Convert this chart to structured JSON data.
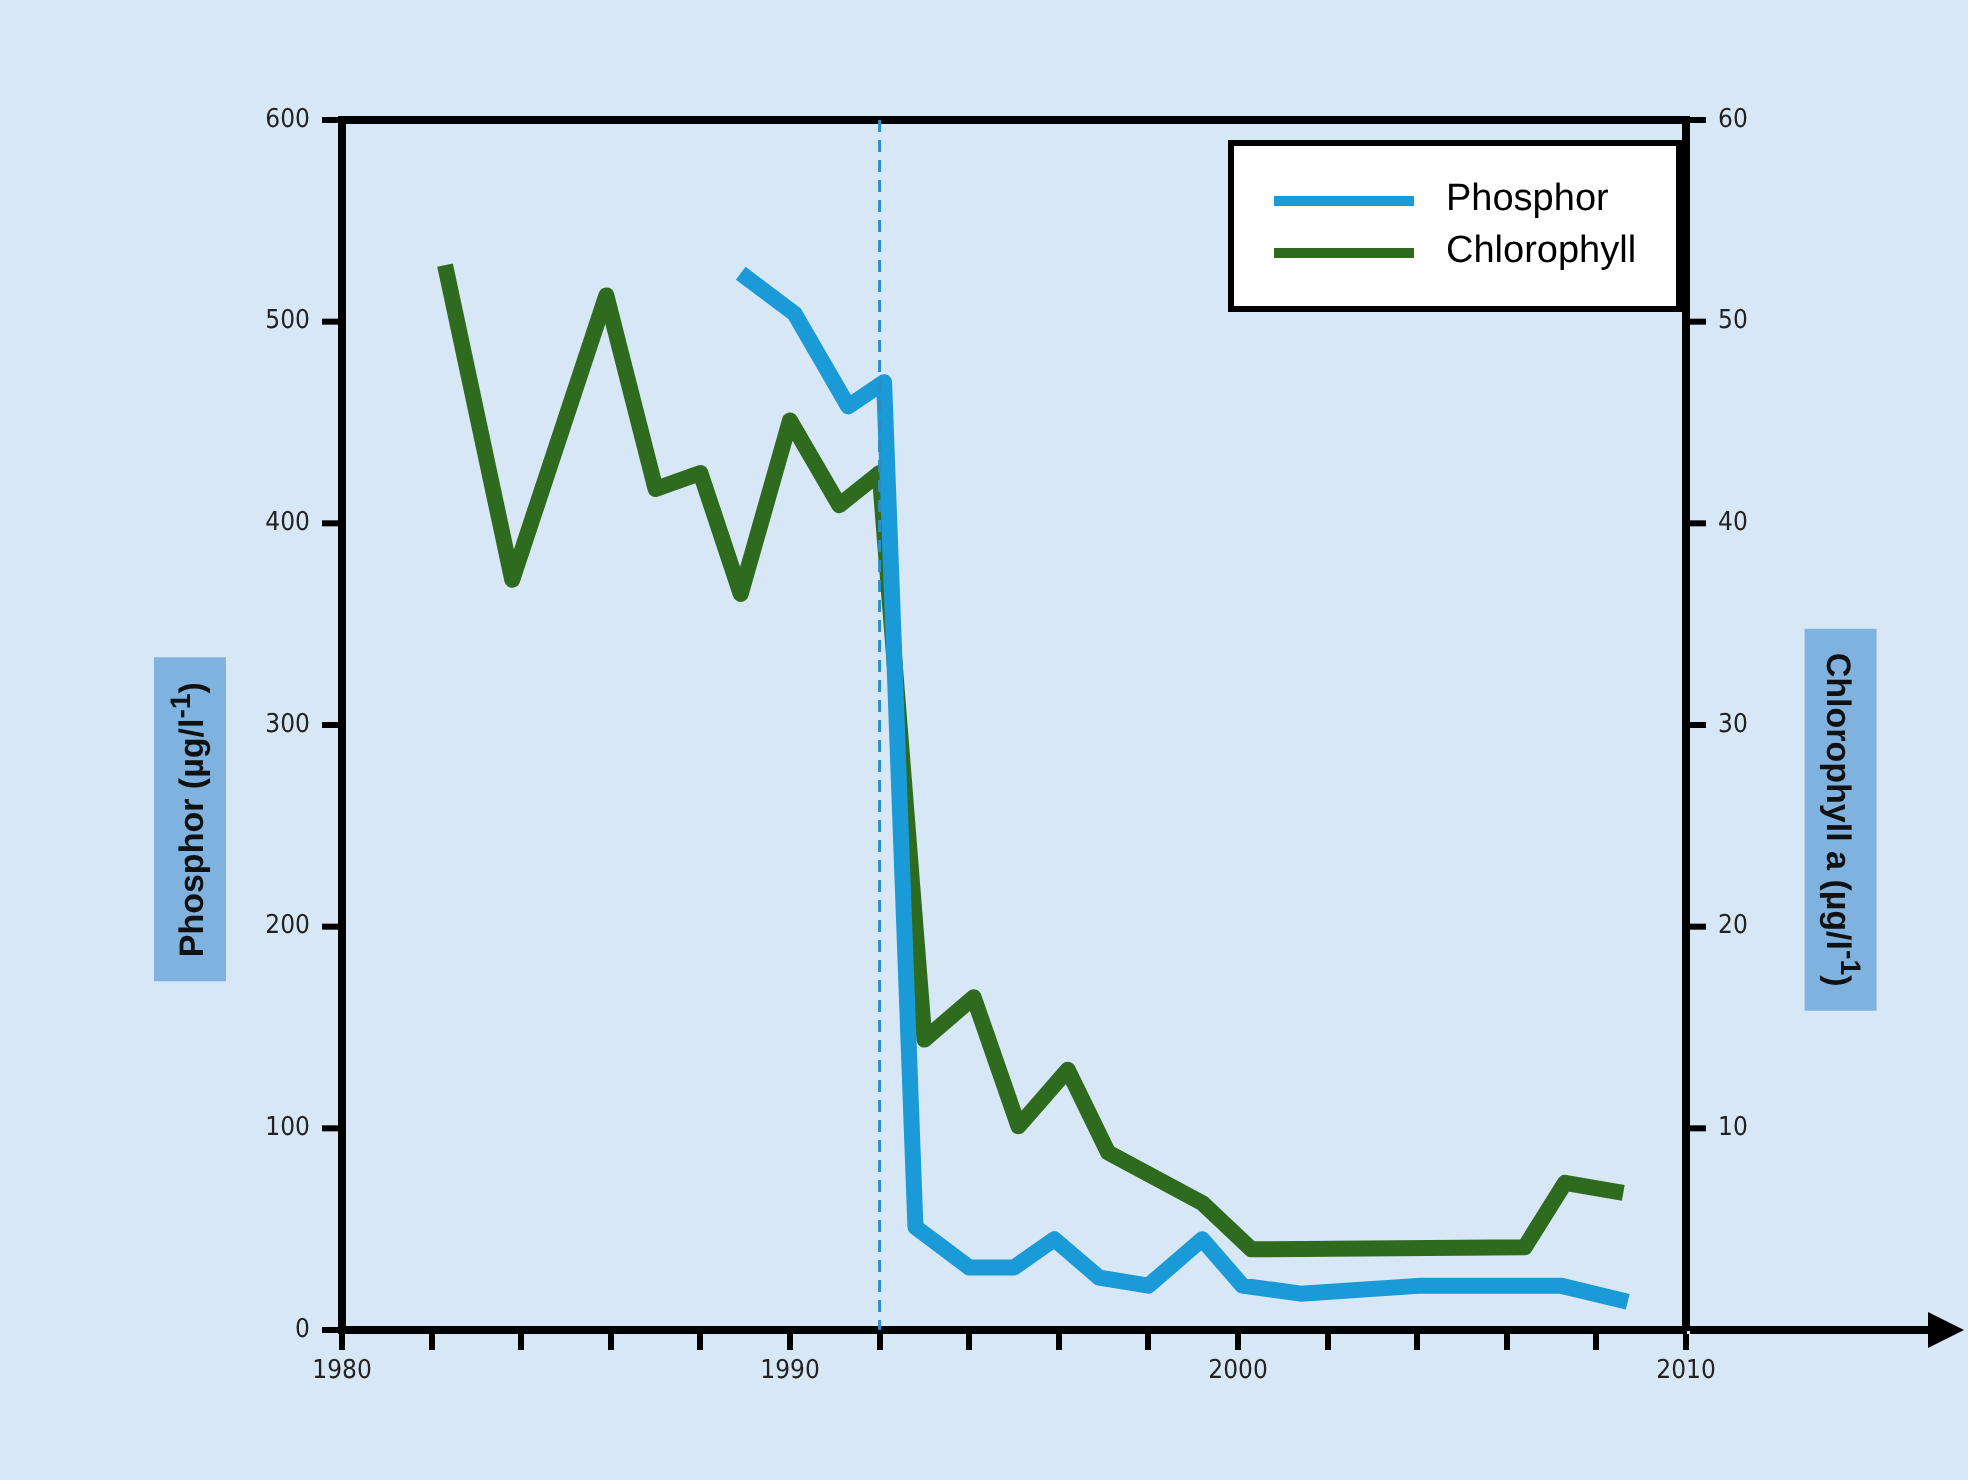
{
  "chart_data": {
    "type": "line",
    "xlim": [
      1980,
      2010
    ],
    "xticks": [
      1980,
      {
        "value": 1982,
        "label": null
      },
      {
        "value": 1984,
        "label": null
      },
      {
        "value": 1986,
        "label": null
      },
      {
        "value": 1988,
        "label": null
      },
      1990,
      {
        "value": 1992,
        "label": null
      },
      {
        "value": 1994,
        "label": null
      },
      {
        "value": 1996,
        "label": null
      },
      {
        "value": 1998,
        "label": null
      },
      2000,
      {
        "value": 2002,
        "label": null
      },
      {
        "value": 2004,
        "label": null
      },
      {
        "value": 2006,
        "label": null
      },
      {
        "value": 2008,
        "label": null
      },
      2010
    ],
    "ylabel": "Phosphor (µg/l$^{-1}$)",
    "y2label": "Chlorophyll a (µg/l$^{-1}$)",
    "ylim": [
      0,
      600
    ],
    "yticks": [
      0,
      100,
      200,
      300,
      400,
      500,
      600
    ],
    "y2lim": [
      0,
      60
    ],
    "y2ticks": [
      10,
      20,
      30,
      40,
      50,
      60
    ],
    "series": [
      {
        "name": "Phosphor",
        "color": "#1a9ad6",
        "x": [
          1988.9,
          1990.1,
          1991.3,
          1992.1,
          1992.8,
          1994,
          1995,
          1995.9,
          1996.9,
          1998,
          1999.2,
          2000.1,
          2001.4,
          2004.1,
          2007.2,
          2008.7
        ],
        "values": [
          524,
          504,
          458,
          470,
          51,
          31,
          31,
          45,
          26,
          22,
          45,
          22,
          18,
          22,
          22,
          14
        ]
      },
      {
        "name": "Chlorophyll",
        "color": "#2e6b1e",
        "axis": "y2",
        "x": [
          1982.3,
          1983.8,
          1985.9,
          1987,
          1988,
          1988.9,
          1990,
          1991.1,
          1992,
          1993,
          1994.1,
          1995.1,
          1996.2,
          1997.1,
          1999.2,
          2000.3,
          2006.4,
          2007.3,
          2008.6
        ],
        "values": [
          52.8,
          37.2,
          51.3,
          41.7,
          42.5,
          36.5,
          45.1,
          40.9,
          42.5,
          14.4,
          16.5,
          10.1,
          12.9,
          8.8,
          6.3,
          4.0,
          4.1,
          7.3,
          6.8
        ]
      }
    ],
    "ref_lines": [
      {
        "axis": "x",
        "value": 1992,
        "color": "#2a8fc4",
        "line_style": "dashed"
      }
    ],
    "legend": "top right",
    "grid": false
  }
}
